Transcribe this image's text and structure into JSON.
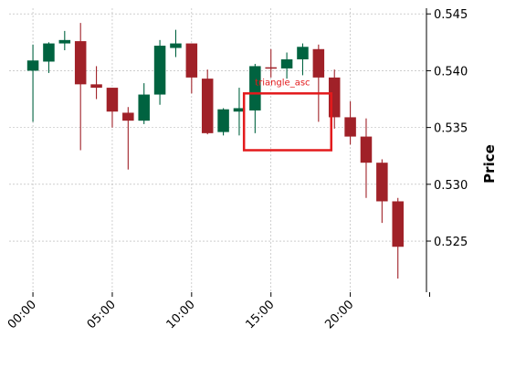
{
  "chart_data": {
    "type": "candlestick",
    "ylabel": "Price",
    "ylim": [
      0.5205,
      0.5455
    ],
    "xlim": [
      -1.5,
      24.8
    ],
    "y_ticks": [
      0.525,
      0.53,
      0.535,
      0.54,
      0.545
    ],
    "y_tick_labels": [
      "0.525",
      "0.530",
      "0.535",
      "0.540",
      "0.545"
    ],
    "x_ticks": [
      0,
      5,
      10,
      15,
      20,
      25
    ],
    "x_tick_labels": [
      "00:00",
      "05:00",
      "10:00",
      "15:00",
      "20:00",
      ""
    ],
    "y_axis_position": "right",
    "grid": true,
    "colors": {
      "up": "#006340",
      "down": "#a02128",
      "annotation": "#e31a1c",
      "grid": "#b0b0b0"
    },
    "candles": [
      {
        "t": 0,
        "open": 0.54,
        "high": 0.5423,
        "low": 0.5355,
        "close": 0.5409
      },
      {
        "t": 1,
        "open": 0.5408,
        "high": 0.5425,
        "low": 0.5398,
        "close": 0.5424
      },
      {
        "t": 2,
        "open": 0.5424,
        "high": 0.5435,
        "low": 0.5418,
        "close": 0.5427
      },
      {
        "t": 3,
        "open": 0.5426,
        "high": 0.5442,
        "low": 0.533,
        "close": 0.5388
      },
      {
        "t": 4,
        "open": 0.5388,
        "high": 0.5404,
        "low": 0.5375,
        "close": 0.5385
      },
      {
        "t": 5,
        "open": 0.5385,
        "high": 0.5385,
        "low": 0.535,
        "close": 0.5364
      },
      {
        "t": 6,
        "open": 0.5363,
        "high": 0.5368,
        "low": 0.5313,
        "close": 0.5356
      },
      {
        "t": 7,
        "open": 0.5356,
        "high": 0.5389,
        "low": 0.5353,
        "close": 0.5379
      },
      {
        "t": 8,
        "open": 0.5379,
        "high": 0.5427,
        "low": 0.537,
        "close": 0.5422
      },
      {
        "t": 9,
        "open": 0.542,
        "high": 0.5436,
        "low": 0.5412,
        "close": 0.5424
      },
      {
        "t": 10,
        "open": 0.5424,
        "high": 0.5424,
        "low": 0.538,
        "close": 0.5394
      },
      {
        "t": 11,
        "open": 0.5393,
        "high": 0.5401,
        "low": 0.5344,
        "close": 0.5345
      },
      {
        "t": 12,
        "open": 0.5346,
        "high": 0.5367,
        "low": 0.5343,
        "close": 0.5366
      },
      {
        "t": 13,
        "open": 0.5364,
        "high": 0.5385,
        "low": 0.5343,
        "close": 0.5367
      },
      {
        "t": 14,
        "open": 0.5365,
        "high": 0.5406,
        "low": 0.5345,
        "close": 0.5404
      },
      {
        "t": 15,
        "open": 0.5403,
        "high": 0.5419,
        "low": 0.5394,
        "close": 0.5402
      },
      {
        "t": 16,
        "open": 0.5402,
        "high": 0.5416,
        "low": 0.5393,
        "close": 0.541
      },
      {
        "t": 17,
        "open": 0.541,
        "high": 0.5424,
        "low": 0.5396,
        "close": 0.5421
      },
      {
        "t": 18,
        "open": 0.5419,
        "high": 0.5423,
        "low": 0.5355,
        "close": 0.5394
      },
      {
        "t": 19,
        "open": 0.5394,
        "high": 0.5401,
        "low": 0.5349,
        "close": 0.5359
      },
      {
        "t": 20,
        "open": 0.5359,
        "high": 0.5373,
        "low": 0.5335,
        "close": 0.5342
      },
      {
        "t": 21,
        "open": 0.5342,
        "high": 0.5358,
        "low": 0.5288,
        "close": 0.5319
      },
      {
        "t": 22,
        "open": 0.5319,
        "high": 0.5322,
        "low": 0.5266,
        "close": 0.5285
      },
      {
        "t": 23,
        "open": 0.5285,
        "high": 0.5288,
        "low": 0.5217,
        "close": 0.5245
      }
    ],
    "annotations": [
      {
        "label": "triangle_asc",
        "x_start": 13.3,
        "x_end": 18.8,
        "y_low": 0.533,
        "y_high": 0.538
      }
    ]
  }
}
